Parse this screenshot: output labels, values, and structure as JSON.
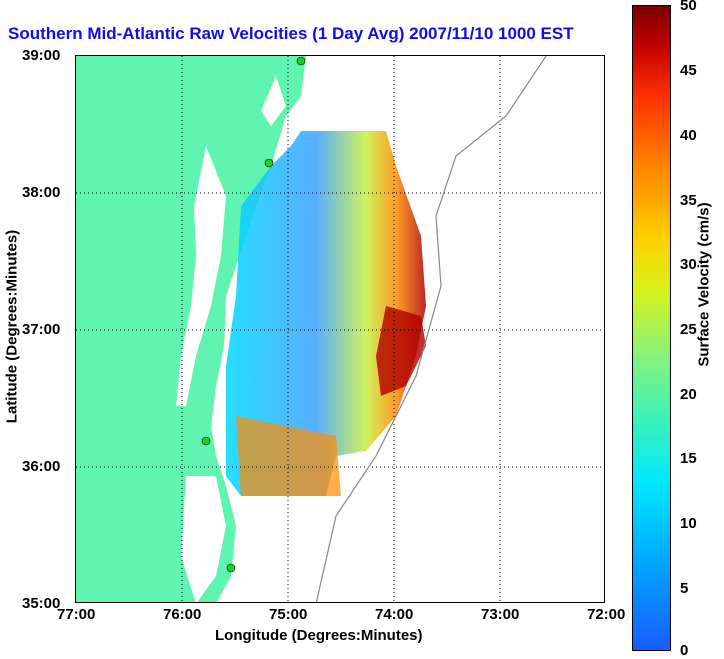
{
  "title": "Southern Mid-Atlantic Raw Velocities (1 Day Avg) 2007/11/10 1000 EST",
  "xaxis": {
    "label": "Longitude (Degrees:Minutes)",
    "ticks": [
      "77:00",
      "76:00",
      "75:00",
      "74:00",
      "73:00",
      "72:00"
    ]
  },
  "yaxis": {
    "label": "Latitude (Degrees:Minutes)",
    "ticks": [
      "39:00",
      "38:00",
      "37:00",
      "36:00",
      "35:00"
    ]
  },
  "colorbar": {
    "label": "Surface Velocity (cm/s)",
    "ticks": [
      "50",
      "45",
      "40",
      "35",
      "30",
      "25",
      "20",
      "15",
      "10",
      "5",
      "0"
    ]
  },
  "colors": {
    "land": "#5ff5b0",
    "title": "#1010e0",
    "station": "#22cc22"
  }
}
